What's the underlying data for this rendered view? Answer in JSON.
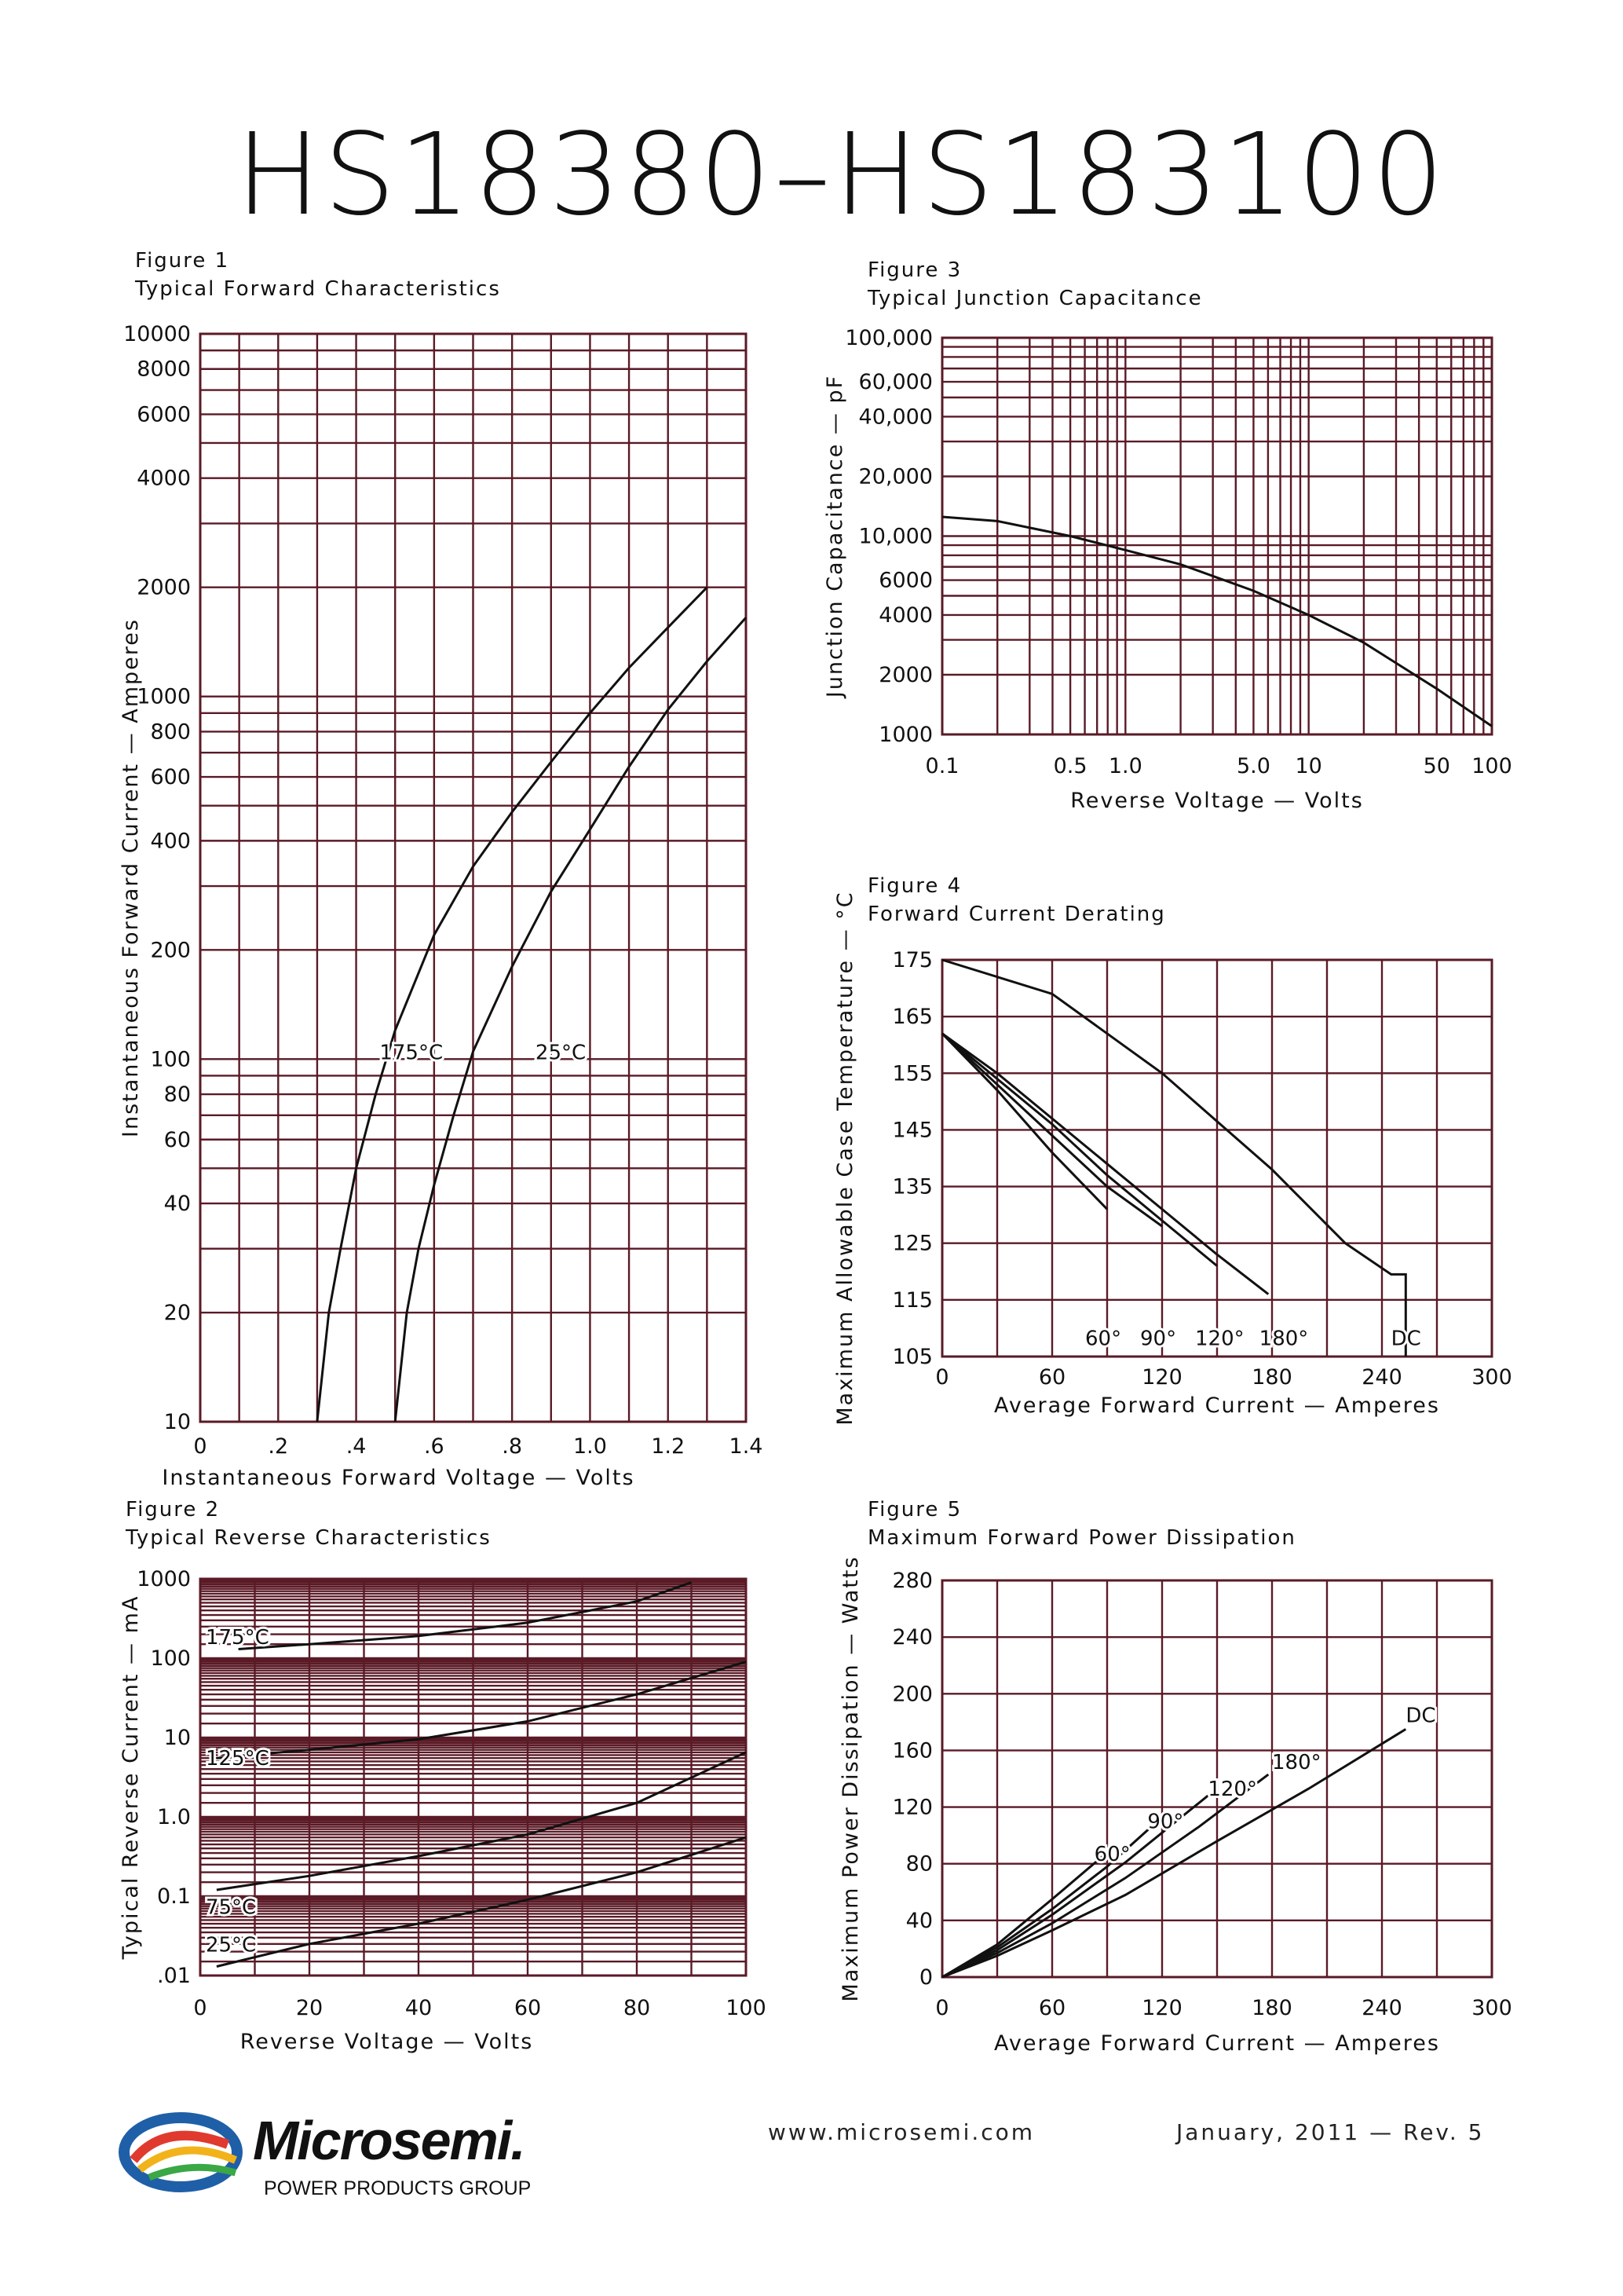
{
  "document": {
    "title": "HS18380–HS183100",
    "footer_url": "www.microsemi.com",
    "footer_date": "January, 2011 — Rev. 5",
    "logo_text": "Microsemi.",
    "logo_subtext": "POWER PRODUCTS GROUP"
  },
  "colors": {
    "grid": "#5a1a26",
    "curve": "#111111",
    "text": "#111111"
  },
  "chart_data": [
    {
      "id": "fig1",
      "figure_label": "Figure 1",
      "title": "Typical Forward Characteristics",
      "type": "line",
      "xlabel": "Instantaneous Forward Voltage — Volts",
      "ylabel": "Instantaneous Forward Current — Amperes",
      "xscale": "linear",
      "yscale": "log",
      "xlim": [
        0,
        1.4
      ],
      "ylim": [
        10,
        10000
      ],
      "x_ticks": [
        0,
        0.2,
        0.4,
        0.6,
        0.8,
        1.0,
        1.2,
        1.4
      ],
      "x_tick_labels": [
        "0",
        ".2",
        ".4",
        ".6",
        ".8",
        "1.0",
        "1.2",
        "1.4"
      ],
      "y_ticks": [
        10,
        20,
        40,
        60,
        80,
        100,
        200,
        400,
        600,
        800,
        1000,
        2000,
        4000,
        6000,
        8000,
        10000
      ],
      "y_tick_labels": [
        "10",
        "20",
        "40",
        "60",
        "80",
        "100",
        "200",
        "400",
        "600",
        "800",
        "1000",
        "2000",
        "4000",
        "6000",
        "8000",
        "10000"
      ],
      "grid": true,
      "series": [
        {
          "name": "175°C",
          "label_at": [
            0.46,
            100
          ],
          "points": [
            [
              0.3,
              10
            ],
            [
              0.33,
              20
            ],
            [
              0.36,
              30
            ],
            [
              0.4,
              50
            ],
            [
              0.45,
              80
            ],
            [
              0.5,
              120
            ],
            [
              0.6,
              220
            ],
            [
              0.7,
              340
            ],
            [
              0.8,
              480
            ],
            [
              0.9,
              660
            ],
            [
              1.0,
              900
            ],
            [
              1.1,
              1200
            ],
            [
              1.2,
              1550
            ],
            [
              1.3,
              2000
            ]
          ]
        },
        {
          "name": "25°C",
          "label_at": [
            0.86,
            100
          ],
          "points": [
            [
              0.5,
              10
            ],
            [
              0.53,
              20
            ],
            [
              0.56,
              30
            ],
            [
              0.6,
              45
            ],
            [
              0.65,
              70
            ],
            [
              0.7,
              105
            ],
            [
              0.8,
              180
            ],
            [
              0.9,
              290
            ],
            [
              1.0,
              430
            ],
            [
              1.1,
              640
            ],
            [
              1.2,
              920
            ],
            [
              1.3,
              1250
            ],
            [
              1.4,
              1650
            ]
          ]
        }
      ]
    },
    {
      "id": "fig2",
      "figure_label": "Figure 2",
      "title": "Typical Reverse Characteristics",
      "type": "line",
      "xlabel": "Reverse Voltage — Volts",
      "ylabel": "Typical Reverse Current — mA",
      "xscale": "linear",
      "yscale": "log",
      "xlim": [
        0,
        100
      ],
      "ylim": [
        0.01,
        1000
      ],
      "x_ticks": [
        0,
        20,
        40,
        60,
        80,
        100
      ],
      "x_tick_labels": [
        "0",
        "20",
        "40",
        "60",
        "80",
        "100"
      ],
      "y_ticks": [
        0.01,
        0.1,
        1,
        10,
        100,
        1000
      ],
      "y_tick_labels": [
        ".01",
        "0.1",
        "1.0",
        "10",
        "100",
        "1000"
      ],
      "grid": true,
      "series": [
        {
          "name": "175°C",
          "label_at": [
            1,
            150
          ],
          "points": [
            [
              7,
              130
            ],
            [
              20,
              150
            ],
            [
              40,
              190
            ],
            [
              60,
              280
            ],
            [
              80,
              520
            ],
            [
              90,
              900
            ]
          ]
        },
        {
          "name": "125°C",
          "label_at": [
            1,
            4.5
          ],
          "points": [
            [
              3,
              5.5
            ],
            [
              20,
              7.0
            ],
            [
              40,
              9.5
            ],
            [
              60,
              16
            ],
            [
              80,
              35
            ],
            [
              100,
              90
            ]
          ]
        },
        {
          "name": "75°C",
          "label_at": [
            1,
            0.06
          ],
          "points": [
            [
              3,
              0.12
            ],
            [
              20,
              0.18
            ],
            [
              40,
              0.32
            ],
            [
              60,
              0.6
            ],
            [
              80,
              1.5
            ],
            [
              100,
              6.5
            ]
          ]
        },
        {
          "name": "25°C",
          "label_at": [
            1,
            0.02
          ],
          "points": [
            [
              3,
              0.013
            ],
            [
              20,
              0.025
            ],
            [
              40,
              0.045
            ],
            [
              60,
              0.09
            ],
            [
              80,
              0.2
            ],
            [
              100,
              0.55
            ]
          ]
        }
      ]
    },
    {
      "id": "fig3",
      "figure_label": "Figure 3",
      "title": "Typical Junction Capacitance",
      "type": "line",
      "xlabel": "Reverse Voltage — Volts",
      "ylabel": "Junction Capacitance — pF",
      "xscale": "log",
      "yscale": "log",
      "xlim": [
        0.1,
        100
      ],
      "ylim": [
        1000,
        100000
      ],
      "x_ticks": [
        0.1,
        0.5,
        1.0,
        5.0,
        10,
        50,
        100
      ],
      "x_tick_labels": [
        "0.1",
        "0.5",
        "1.0",
        "5.0",
        "10",
        "50",
        "100"
      ],
      "y_ticks": [
        1000,
        2000,
        4000,
        6000,
        10000,
        20000,
        40000,
        60000,
        100000
      ],
      "y_tick_labels": [
        "1000",
        "2000",
        "4000",
        "6000",
        "10,000",
        "20,000",
        "40,000",
        "60,000",
        "100,000"
      ],
      "grid": true,
      "series": [
        {
          "name": "",
          "points": [
            [
              0.1,
              12500
            ],
            [
              0.2,
              11900
            ],
            [
              0.5,
              10000
            ],
            [
              1.0,
              8500
            ],
            [
              2.0,
              7200
            ],
            [
              5.0,
              5300
            ],
            [
              10,
              4000
            ],
            [
              20,
              2900
            ],
            [
              50,
              1700
            ],
            [
              100,
              1100
            ]
          ]
        }
      ]
    },
    {
      "id": "fig4",
      "figure_label": "Figure 4",
      "title": "Forward Current Derating",
      "type": "line",
      "xlabel": "Average Forward Current — Amperes",
      "ylabel": "Maximum Allowable Case Temperature — °C",
      "xscale": "linear",
      "yscale": "linear",
      "xlim": [
        0,
        300
      ],
      "ylim": [
        105,
        175
      ],
      "x_ticks": [
        0,
        60,
        120,
        180,
        240,
        300
      ],
      "x_tick_labels": [
        "0",
        "60",
        "120",
        "180",
        "240",
        "300"
      ],
      "y_ticks": [
        105,
        115,
        125,
        135,
        145,
        155,
        165,
        175
      ],
      "y_tick_labels": [
        "105",
        "115",
        "125",
        "135",
        "145",
        "155",
        "165",
        "175"
      ],
      "grid": true,
      "series": [
        {
          "name": "DC",
          "label_at": [
            245,
            107
          ],
          "points": [
            [
              0,
              175
            ],
            [
              60,
              169
            ],
            [
              120,
              155
            ],
            [
              180,
              138
            ],
            [
              220,
              125
            ],
            [
              245,
              119.5
            ],
            [
              253,
              119.5
            ],
            [
              253,
              105
            ]
          ]
        },
        {
          "name": "180°",
          "label_at": [
            173,
            107
          ],
          "points": [
            [
              0,
              162
            ],
            [
              30,
              155
            ],
            [
              60,
              147
            ],
            [
              90,
              139
            ],
            [
              120,
              131
            ],
            [
              150,
              123
            ],
            [
              178,
              116
            ]
          ]
        },
        {
          "name": "120°",
          "label_at": [
            138,
            107
          ],
          "points": [
            [
              0,
              162
            ],
            [
              30,
              154
            ],
            [
              60,
              146
            ],
            [
              90,
              137
            ],
            [
              120,
              129
            ],
            [
              150,
              121
            ]
          ]
        },
        {
          "name": "90°",
          "label_at": [
            108,
            107
          ],
          "points": [
            [
              0,
              162
            ],
            [
              30,
              153
            ],
            [
              60,
              144
            ],
            [
              90,
              135
            ],
            [
              120,
              128
            ]
          ]
        },
        {
          "name": "60°",
          "label_at": [
            78,
            107
          ],
          "points": [
            [
              0,
              162
            ],
            [
              30,
              152
            ],
            [
              60,
              141
            ],
            [
              90,
              131
            ]
          ]
        }
      ]
    },
    {
      "id": "fig5",
      "figure_label": "Figure 5",
      "title": "Maximum Forward Power Dissipation",
      "type": "line",
      "xlabel": "Average Forward Current — Amperes",
      "ylabel": "Maximum Power Dissipation — Watts",
      "xscale": "linear",
      "yscale": "linear",
      "xlim": [
        0,
        300
      ],
      "ylim": [
        0,
        280
      ],
      "x_ticks": [
        0,
        60,
        120,
        180,
        240,
        300
      ],
      "x_tick_labels": [
        "0",
        "60",
        "120",
        "180",
        "240",
        "300"
      ],
      "y_ticks": [
        0,
        40,
        80,
        120,
        160,
        200,
        240,
        280
      ],
      "y_tick_labels": [
        "0",
        "40",
        "80",
        "120",
        "160",
        "200",
        "240",
        "280"
      ],
      "grid": true,
      "series": [
        {
          "name": "DC",
          "label_at": [
            253,
            180
          ],
          "points": [
            [
              0,
              0
            ],
            [
              30,
              15
            ],
            [
              60,
              33
            ],
            [
              100,
              58
            ],
            [
              150,
              96
            ],
            [
              200,
              133
            ],
            [
              253,
              175
            ]
          ]
        },
        {
          "name": "180°",
          "label_at": [
            180,
            147
          ],
          "points": [
            [
              0,
              0
            ],
            [
              30,
              17
            ],
            [
              60,
              38
            ],
            [
              100,
              70
            ],
            [
              140,
              106
            ],
            [
              178,
              143
            ]
          ]
        },
        {
          "name": "120°",
          "label_at": [
            145,
            128
          ],
          "points": [
            [
              0,
              0
            ],
            [
              30,
              19
            ],
            [
              60,
              44
            ],
            [
              100,
              81
            ],
            [
              145,
              128
            ]
          ]
        },
        {
          "name": "90°",
          "label_at": [
            112,
            105
          ],
          "points": [
            [
              0,
              0
            ],
            [
              30,
              21
            ],
            [
              60,
              48
            ],
            [
              90,
              78
            ],
            [
              120,
              113
            ]
          ]
        },
        {
          "name": "60°",
          "label_at": [
            83,
            82
          ],
          "points": [
            [
              0,
              0
            ],
            [
              30,
              23
            ],
            [
              60,
              55
            ],
            [
              90,
              88
            ]
          ]
        }
      ]
    }
  ]
}
